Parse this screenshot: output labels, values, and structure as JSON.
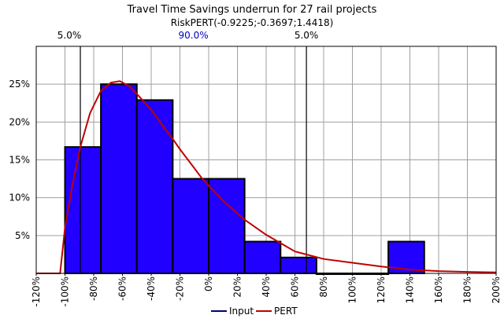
{
  "chart_data": {
    "type": "bar",
    "title": "Travel Time Savings underrun for 27 rail projects",
    "subtitle": "RiskPERT(-0.9225;-0.3697;1.4418)",
    "xlabel": "",
    "ylabel": "",
    "xlim": [
      -120,
      200
    ],
    "ylim": [
      0,
      30
    ],
    "grid": true,
    "x_ticks": [
      "-120%",
      "-100%",
      "-80%",
      "-60%",
      "-40%",
      "-20%",
      "0%",
      "20%",
      "40%",
      "60%",
      "80%",
      "100%",
      "120%",
      "140%",
      "160%",
      "180%",
      "200%"
    ],
    "x_tick_values": [
      -120,
      -100,
      -80,
      -60,
      -40,
      -20,
      0,
      20,
      40,
      60,
      80,
      100,
      120,
      140,
      160,
      180,
      200
    ],
    "y_ticks": [
      "5%",
      "10%",
      "15%",
      "20%",
      "25%"
    ],
    "y_tick_values": [
      5,
      10,
      15,
      20,
      25
    ],
    "bins": [
      {
        "from": -100,
        "to": -75,
        "value": 16.7
      },
      {
        "from": -75,
        "to": -50,
        "value": 25.0
      },
      {
        "from": -50,
        "to": -25,
        "value": 22.9
      },
      {
        "from": -25,
        "to": 0,
        "value": 12.5
      },
      {
        "from": 0,
        "to": 25,
        "value": 12.5
      },
      {
        "from": 25,
        "to": 50,
        "value": 4.2
      },
      {
        "from": 50,
        "to": 75,
        "value": 2.1
      },
      {
        "from": 75,
        "to": 100,
        "value": 0
      },
      {
        "from": 100,
        "to": 125,
        "value": 0
      },
      {
        "from": 125,
        "to": 150,
        "value": 4.2
      }
    ],
    "pert_curve": {
      "x": [
        -120,
        -103.4,
        -100,
        -95,
        -89.3,
        -82.5,
        -75,
        -68,
        -61.8,
        -55,
        -49,
        -40,
        -30,
        -24.4,
        -20,
        -10,
        -4.9,
        0,
        10,
        20,
        25.7,
        40,
        60,
        80,
        100,
        120,
        140,
        160,
        180,
        200
      ],
      "y": [
        0,
        0,
        6,
        11.5,
        16.7,
        21.2,
        24.1,
        25.2,
        25.4,
        24.7,
        23.5,
        21.6,
        19.0,
        17.6,
        16.4,
        13.9,
        12.6,
        11.6,
        9.6,
        7.9,
        7.0,
        5.1,
        2.9,
        1.9,
        1.4,
        0.9,
        0.5,
        0.3,
        0.2,
        0.14
      ]
    },
    "percentile_lines": [
      {
        "x": -89.3,
        "label": "5.0%"
      },
      {
        "x": 68.0,
        "label": "5.0%"
      }
    ],
    "middle_label": "90.0%",
    "legend": {
      "placement": "bottom",
      "entries": [
        {
          "name": "Input",
          "color": "#000080"
        },
        {
          "name": "PERT",
          "color": "#c00000"
        }
      ]
    },
    "colors": {
      "bar_fill": "#2200ff",
      "bar_stroke": "#000000",
      "curve": "#c00000",
      "grid": "#a0a0a0",
      "middle_label": "#0000c0"
    }
  }
}
